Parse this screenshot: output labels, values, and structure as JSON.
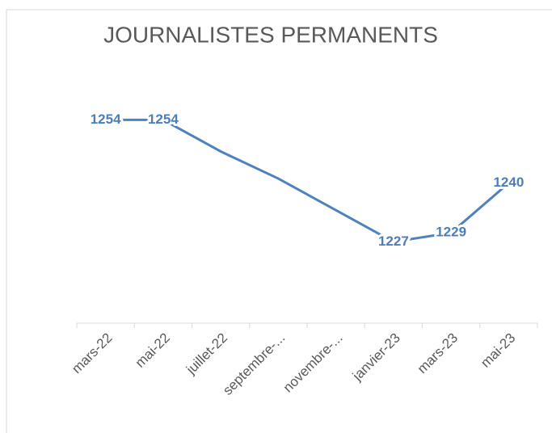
{
  "chart_data": {
    "type": "line",
    "title": "JOURNALISTES PERMANENTS",
    "categories": [
      "mars-22",
      "mai-22",
      "juillet-22",
      "septembre-...",
      "novembre-...",
      "janvier-23",
      "mars-23",
      "mai-23"
    ],
    "series": [
      {
        "name": "Journalistes permanents",
        "color": "#4f81bd",
        "values": [
          1254,
          1254,
          1247,
          1241,
          1234,
          1227,
          1229,
          1240
        ],
        "value_labels": [
          "1254",
          "1254",
          null,
          null,
          null,
          "1227",
          "1229",
          "1240"
        ]
      }
    ],
    "ylim": [
      1209,
      1263
    ],
    "grid": false,
    "legend": false
  }
}
